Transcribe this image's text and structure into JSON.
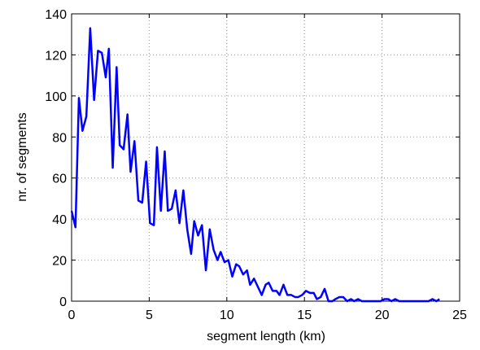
{
  "chart_data": {
    "type": "line",
    "xlabel": "segment length (km)",
    "ylabel": "nr. of segments",
    "x": [
      0,
      0.25,
      0.47,
      0.7,
      0.95,
      1.2,
      1.45,
      1.7,
      1.95,
      2.2,
      2.4,
      2.65,
      2.9,
      3.1,
      3.35,
      3.6,
      3.8,
      4.05,
      4.3,
      4.55,
      4.8,
      5.05,
      5.3,
      5.5,
      5.75,
      6.0,
      6.2,
      6.45,
      6.7,
      6.95,
      7.2,
      7.45,
      7.7,
      7.9,
      8.15,
      8.4,
      8.65,
      8.9,
      9.15,
      9.4,
      9.6,
      9.85,
      10.1,
      10.35,
      10.6,
      10.8,
      11.05,
      11.3,
      11.5,
      11.75,
      12.0,
      12.25,
      12.5,
      12.7,
      12.95,
      13.2,
      13.4,
      13.65,
      13.9,
      14.15,
      14.4,
      14.6,
      14.85,
      15.1,
      15.35,
      15.6,
      15.8,
      16.05,
      16.3,
      16.55,
      16.8,
      17.0,
      17.25,
      17.5,
      17.75,
      18.0,
      18.2,
      18.45,
      18.7,
      18.95,
      19.2,
      19.4,
      19.65,
      19.9,
      20.15,
      20.4,
      20.6,
      20.85,
      21.1,
      21.35,
      21.6,
      21.8,
      22.05,
      22.3,
      22.55,
      22.8,
      23.0,
      23.25,
      23.5,
      23.7
    ],
    "values": [
      44,
      36,
      99,
      83,
      90,
      133,
      98,
      122,
      121,
      109,
      123,
      65,
      114,
      76,
      74,
      91,
      63,
      78,
      49,
      48,
      68,
      38,
      37,
      75,
      44,
      73,
      44,
      45,
      54,
      38,
      54,
      35,
      23,
      39,
      32,
      37,
      15,
      35,
      25,
      20,
      24,
      19,
      20,
      12,
      18,
      17,
      13,
      15,
      8,
      11,
      7,
      3,
      8,
      9,
      5,
      5,
      3,
      8,
      3,
      3,
      2,
      2,
      3,
      5,
      4,
      4,
      1,
      2,
      6,
      0,
      0,
      1,
      2,
      2,
      0,
      1,
      0,
      1,
      0,
      0,
      0,
      0,
      0,
      0,
      1,
      1,
      0,
      1,
      0,
      0,
      0,
      0,
      0,
      0,
      0,
      0,
      0,
      1,
      0,
      1
    ],
    "color": "#0000ff",
    "xlim": [
      0,
      25
    ],
    "xticks": [
      0,
      5,
      10,
      15,
      20,
      25
    ],
    "ylim": [
      0,
      140
    ],
    "yticks": [
      0,
      20,
      40,
      60,
      80,
      100,
      120,
      140
    ],
    "grid": true
  }
}
